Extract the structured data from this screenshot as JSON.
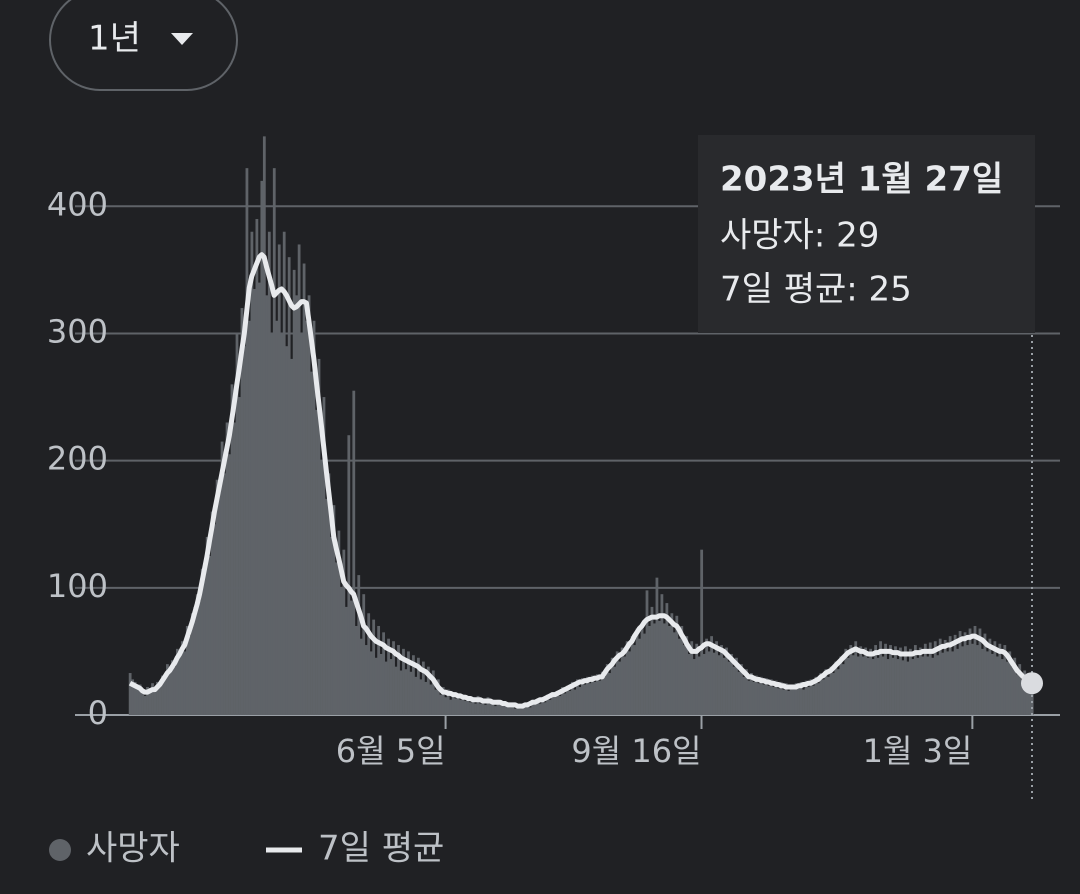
{
  "range_selector": {
    "label": "1년"
  },
  "chart_data": {
    "type": "bar",
    "categories": [
      null,
      null,
      null,
      null,
      null,
      null,
      null,
      null,
      null,
      null,
      null,
      null,
      null,
      null,
      null,
      null,
      null,
      null,
      null,
      null,
      null,
      null,
      null,
      null,
      null,
      null,
      null,
      null,
      null,
      null,
      null,
      null,
      null,
      null,
      null,
      null,
      null,
      null,
      null,
      null,
      null,
      null,
      null,
      null,
      null,
      null,
      null,
      null,
      null,
      null,
      null,
      null,
      null,
      null,
      null,
      null,
      null,
      null,
      null,
      null,
      null,
      null,
      null,
      null,
      null,
      null,
      null,
      null,
      null,
      null,
      null,
      null,
      null,
      null,
      null,
      null,
      null,
      null,
      null,
      null,
      null,
      null,
      null,
      null,
      null,
      null,
      null,
      null,
      null,
      null,
      null,
      null,
      null,
      null,
      null,
      null,
      null,
      null,
      null,
      null,
      null,
      null,
      null,
      null,
      null,
      null,
      null,
      null,
      null,
      null,
      null,
      null,
      null,
      null,
      null,
      null,
      null,
      null,
      null,
      null,
      null,
      null,
      null,
      null,
      null,
      null,
      null,
      "6월 5일",
      null,
      null,
      null,
      null,
      null,
      null,
      null,
      null,
      null,
      null,
      null,
      null,
      null,
      null,
      null,
      null,
      null,
      null,
      null,
      null,
      null,
      null,
      null,
      null,
      null,
      null,
      null,
      null,
      null,
      null,
      null,
      null,
      null,
      null,
      null,
      null,
      null,
      null,
      null,
      null,
      null,
      null,
      null,
      null,
      null,
      null,
      null,
      null,
      null,
      null,
      null,
      null,
      null,
      null,
      null,
      null,
      null,
      null,
      null,
      null,
      null,
      null,
      null,
      null,
      null,
      null,
      null,
      null,
      null,
      null,
      null,
      null,
      null,
      null,
      null,
      null,
      null,
      null,
      null,
      null,
      null,
      null,
      null,
      null,
      null,
      null,
      null,
      null,
      null,
      null,
      null,
      null,
      null,
      null,
      null,
      null,
      null,
      null,
      null,
      null,
      null,
      null,
      "9월 16일",
      null,
      null,
      null,
      null,
      null,
      null,
      null,
      null,
      null,
      null,
      null,
      null,
      null,
      null,
      null,
      null,
      null,
      null,
      null,
      null,
      null,
      null,
      null,
      null,
      null,
      null,
      null,
      null,
      null,
      null,
      null,
      null,
      null,
      null,
      null,
      null,
      null,
      null,
      null,
      null,
      null,
      null,
      null,
      null,
      null,
      null,
      null,
      null,
      null,
      null,
      null,
      null,
      null,
      null,
      null,
      null,
      null,
      null,
      null,
      null,
      null,
      null,
      null,
      null,
      null,
      null,
      null,
      null,
      null,
      null,
      null,
      null,
      null,
      null,
      null,
      null,
      null,
      null,
      null,
      null,
      null,
      null,
      null,
      null,
      null,
      null,
      null,
      null,
      null,
      null,
      null,
      null,
      null,
      null,
      null,
      null,
      null,
      null,
      null,
      null,
      null,
      null,
      null,
      null,
      null,
      null,
      null,
      null,
      "1월 3일",
      null,
      null,
      null,
      null,
      null,
      null,
      null,
      null,
      null,
      null,
      null,
      null,
      null,
      null,
      null,
      null,
      null,
      null,
      null,
      null,
      null,
      null,
      null,
      null
    ],
    "series": [
      {
        "name": "사망자",
        "type": "bar",
        "color": "#5f6368",
        "values": [
          33,
          28,
          26,
          20,
          24,
          17,
          15,
          22,
          21,
          25,
          18,
          26,
          22,
          31,
          28,
          40,
          33,
          43,
          38,
          52,
          46,
          58,
          50,
          70,
          62,
          80,
          85,
          95,
          90,
          115,
          110,
          140,
          125,
          160,
          150,
          185,
          175,
          215,
          190,
          230,
          205,
          260,
          230,
          300,
          250,
          320,
          290,
          430,
          310,
          380,
          335,
          390,
          340,
          420,
          455,
          330,
          380,
          300,
          430,
          310,
          370,
          300,
          380,
          290,
          360,
          280,
          350,
          330,
          370,
          300,
          355,
          310,
          330,
          270,
          310,
          240,
          280,
          200,
          250,
          170,
          190,
          140,
          165,
          120,
          145,
          100,
          130,
          85,
          220,
          90,
          255,
          70,
          110,
          60,
          95,
          55,
          80,
          50,
          75,
          45,
          70,
          48,
          65,
          42,
          60,
          44,
          58,
          38,
          55,
          35,
          52,
          36,
          50,
          34,
          47,
          30,
          45,
          28,
          42,
          26,
          38,
          24,
          35,
          20,
          28,
          16,
          22,
          14,
          20,
          12,
          18,
          13,
          17,
          12,
          16,
          11,
          15,
          10,
          14,
          9,
          15,
          9,
          13,
          8,
          14,
          9,
          12,
          7,
          12,
          8,
          11,
          7,
          10,
          6,
          9,
          5,
          8,
          5,
          8,
          6,
          10,
          6,
          12,
          8,
          13,
          9,
          14,
          10,
          16,
          12,
          18,
          14,
          19,
          15,
          22,
          17,
          23,
          19,
          26,
          20,
          28,
          22,
          29,
          24,
          30,
          25,
          31,
          26,
          32,
          27,
          34,
          30,
          40,
          33,
          45,
          38,
          50,
          42,
          53,
          46,
          58,
          50,
          62,
          55,
          68,
          60,
          72,
          64,
          98,
          70,
          85,
          72,
          108,
          74,
          95,
          72,
          88,
          70,
          80,
          65,
          78,
          60,
          70,
          55,
          62,
          48,
          58,
          44,
          56,
          46,
          130,
          48,
          60,
          50,
          62,
          49,
          58,
          47,
          55,
          45,
          53,
          42,
          48,
          38,
          45,
          34,
          40,
          30,
          36,
          27,
          33,
          26,
          31,
          25,
          30,
          24,
          29,
          23,
          28,
          22,
          27,
          21,
          26,
          20,
          25,
          19,
          24,
          20,
          25,
          21,
          26,
          20,
          27,
          22,
          28,
          23,
          30,
          25,
          33,
          28,
          36,
          30,
          38,
          33,
          42,
          36,
          46,
          40,
          52,
          45,
          55,
          47,
          58,
          46,
          54,
          46,
          53,
          45,
          52,
          44,
          55,
          45,
          58,
          46,
          56,
          44,
          55,
          45,
          54,
          44,
          53,
          43,
          54,
          42,
          52,
          44,
          55,
          45,
          53,
          46,
          56,
          46,
          57,
          45,
          58,
          47,
          60,
          49,
          59,
          50,
          62,
          50,
          63,
          52,
          66,
          54,
          65,
          55,
          68,
          56,
          70,
          55,
          68,
          52,
          64,
          50,
          60,
          48,
          58,
          46,
          56,
          44,
          55,
          42,
          50,
          38,
          45,
          32,
          40,
          28,
          35,
          24,
          30,
          29
        ]
      },
      {
        "name": "7일 평균",
        "type": "line",
        "color": "#e8eaed",
        "values": [
          25,
          24,
          23,
          22,
          21,
          19,
          18,
          18,
          19,
          20,
          20,
          22,
          24,
          27,
          30,
          33,
          35,
          38,
          41,
          45,
          48,
          52,
          55,
          61,
          67,
          73,
          80,
          87,
          95,
          105,
          115,
          125,
          137,
          148,
          160,
          170,
          180,
          190,
          200,
          210,
          220,
          233,
          246,
          260,
          273,
          287,
          300,
          318,
          336,
          345,
          350,
          355,
          360,
          362,
          360,
          352,
          345,
          338,
          330,
          332,
          334,
          335,
          333,
          330,
          326,
          322,
          320,
          321,
          323,
          325,
          325,
          324,
          310,
          295,
          280,
          262,
          245,
          228,
          210,
          192,
          175,
          158,
          140,
          131,
          123,
          114,
          105,
          102,
          100,
          97,
          95,
          89,
          83,
          77,
          70,
          68,
          65,
          62,
          60,
          58,
          57,
          56,
          55,
          53,
          52,
          51,
          50,
          48,
          47,
          45,
          44,
          43,
          42,
          41,
          40,
          39,
          38,
          36,
          35,
          34,
          32,
          30,
          28,
          25,
          22,
          20,
          18,
          18,
          17,
          17,
          16,
          16,
          15,
          15,
          14,
          14,
          13,
          13,
          12,
          12,
          12,
          12,
          11,
          11,
          11,
          11,
          10,
          10,
          10,
          10,
          9,
          9,
          8,
          8,
          8,
          8,
          7,
          7,
          7,
          8,
          8,
          9,
          10,
          10,
          11,
          12,
          12,
          13,
          14,
          15,
          16,
          16,
          17,
          18,
          19,
          20,
          21,
          22,
          23,
          24,
          25,
          26,
          26,
          27,
          27,
          28,
          28,
          29,
          29,
          30,
          30,
          33,
          36,
          38,
          40,
          43,
          45,
          47,
          48,
          50,
          53,
          56,
          58,
          62,
          65,
          68,
          70,
          73,
          75,
          76,
          77,
          77,
          77,
          78,
          78,
          78,
          77,
          75,
          73,
          71,
          70,
          67,
          63,
          60,
          56,
          53,
          50,
          50,
          50,
          52,
          53,
          55,
          56,
          56,
          55,
          54,
          53,
          52,
          51,
          50,
          48,
          46,
          44,
          42,
          40,
          38,
          36,
          34,
          32,
          30,
          30,
          29,
          28,
          28,
          27,
          27,
          26,
          26,
          25,
          25,
          24,
          24,
          23,
          23,
          22,
          22,
          22,
          22,
          22,
          23,
          23,
          24,
          24,
          25,
          25,
          26,
          27,
          28,
          30,
          31,
          33,
          34,
          35,
          37,
          39,
          41,
          43,
          45,
          47,
          49,
          50,
          51,
          52,
          51,
          50,
          50,
          49,
          48,
          48,
          48,
          49,
          49,
          50,
          50,
          50,
          50,
          50,
          49,
          49,
          49,
          48,
          48,
          48,
          48,
          48,
          48,
          49,
          49,
          49,
          50,
          50,
          50,
          50,
          50,
          51,
          52,
          53,
          54,
          54,
          55,
          55,
          56,
          57,
          58,
          59,
          60,
          60,
          61,
          61,
          62,
          62,
          61,
          60,
          59,
          57,
          55,
          54,
          53,
          52,
          51,
          50,
          50,
          49,
          47,
          44,
          41,
          38,
          35,
          33,
          31,
          29,
          28,
          26,
          25
        ]
      }
    ],
    "ylim": [
      0,
      460
    ],
    "yticks": [
      0,
      100,
      200,
      300,
      400
    ],
    "grid": true,
    "legend": "bottom-left",
    "tooltip": {
      "title": "2023년 1월 27일",
      "lines": [
        "사망자: 29",
        "7일 평균: 25"
      ]
    }
  }
}
